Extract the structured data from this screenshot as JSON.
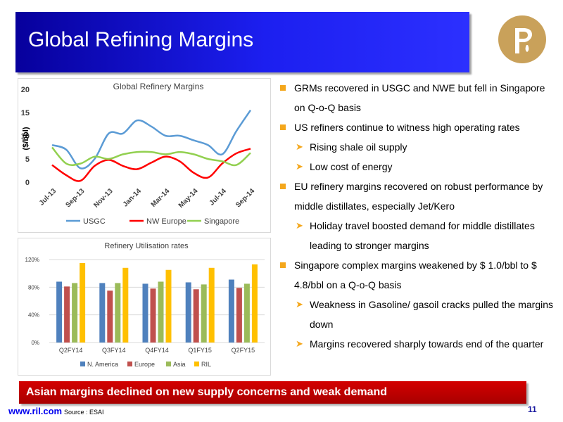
{
  "header": {
    "title": "Global Refining Margins"
  },
  "colors": {
    "header_blue": "#1c1ff0",
    "logo_gold": "#c9a15a",
    "bullet_orange": "#f4a71c",
    "bar_red": "#c00000"
  },
  "logo": {
    "icon": "ril-logo-icon"
  },
  "chart_data": [
    {
      "type": "line",
      "title": "Global Refinery Margins",
      "ylabel": "($/bbl)",
      "xlabel": "",
      "x": [
        "Jul-13",
        "Aug-13",
        "Sep-13",
        "Oct-13",
        "Nov-13",
        "Dec-13",
        "Jan-14",
        "Feb-14",
        "Mar-14",
        "Apr-14",
        "May-14",
        "Jun-14",
        "Jul-14",
        "Aug-14",
        "Sep-14"
      ],
      "x_tick_labels": [
        "Jul-13",
        "Sep-13",
        "Nov-13",
        "Jan-14",
        "Mar-14",
        "May-14",
        "Jul-14",
        "Sep-14"
      ],
      "y_ticks": [
        "0",
        "5",
        "10",
        "15",
        "20"
      ],
      "ylim": [
        0,
        20
      ],
      "grid": false,
      "legend": "bottom",
      "series": [
        {
          "name": "USGC",
          "color": "#5b9bd5",
          "values": [
            8,
            7,
            3,
            5,
            10.5,
            10.5,
            13.3,
            12,
            10,
            10,
            9,
            8,
            6,
            11,
            15.5
          ]
        },
        {
          "name": "NW Europe",
          "color": "#ff0000",
          "values": [
            3.7,
            1.5,
            0.3,
            3.5,
            4.8,
            3.5,
            2.8,
            4.2,
            5.5,
            4.5,
            2,
            1,
            4,
            6.2,
            7.2
          ]
        },
        {
          "name": "Singapore",
          "color": "#92d050",
          "values": [
            7.5,
            4,
            4,
            5.5,
            5,
            6,
            6.5,
            6.5,
            6,
            6.5,
            6,
            5,
            4.5,
            3.7,
            6.3
          ]
        }
      ]
    },
    {
      "type": "bar",
      "title": "Refinery Utilisation rates",
      "xlabel": "",
      "ylabel": "",
      "categories": [
        "Q2FY14",
        "Q3FY14",
        "Q4FY14",
        "Q1FY15",
        "Q2FY15"
      ],
      "y_ticks": [
        "0%",
        "40%",
        "80%",
        "120%"
      ],
      "ylim": [
        0,
        120
      ],
      "grid": true,
      "legend": "bottom",
      "series": [
        {
          "name": "N. America",
          "color": "#4f81bd",
          "values": [
            88,
            86,
            85,
            87,
            91
          ]
        },
        {
          "name": "Europe",
          "color": "#c0504d",
          "values": [
            81,
            75,
            78,
            77,
            79
          ]
        },
        {
          "name": "Asia",
          "color": "#9bbb59",
          "values": [
            86,
            86,
            88,
            84,
            85
          ]
        },
        {
          "name": "RIL",
          "color": "#ffc000",
          "values": [
            115,
            108,
            105,
            108,
            113
          ]
        }
      ]
    }
  ],
  "bullets": [
    {
      "level": 1,
      "text": "GRMs recovered in USGC and NWE but fell in Singapore on Q-o-Q basis"
    },
    {
      "level": 1,
      "text": "US refiners continue to witness high operating rates"
    },
    {
      "level": 2,
      "text": "Rising shale oil supply"
    },
    {
      "level": 2,
      "text": "Low cost of energy"
    },
    {
      "level": 1,
      "text": "EU refinery margins recovered on robust performance by middle distillates, especially Jet/Kero"
    },
    {
      "level": 2,
      "text": "Holiday travel boosted demand for middle distillates leading to stronger margins"
    },
    {
      "level": 1,
      "text": "Singapore complex margins weakened by $ 1.0/bbl to $ 4.8/bbl on a Q-o-Q basis"
    },
    {
      "level": 2,
      "text": "Weakness in Gasoline/ gasoil cracks pulled the margins down"
    },
    {
      "level": 2,
      "text": "Margins recovered sharply towards end of the quarter"
    }
  ],
  "bottom_banner": {
    "text": "Asian margins declined on new supply concerns and weak demand"
  },
  "footer": {
    "link": "www.ril.com",
    "source": "Source : ESAI",
    "page_number": "11"
  }
}
